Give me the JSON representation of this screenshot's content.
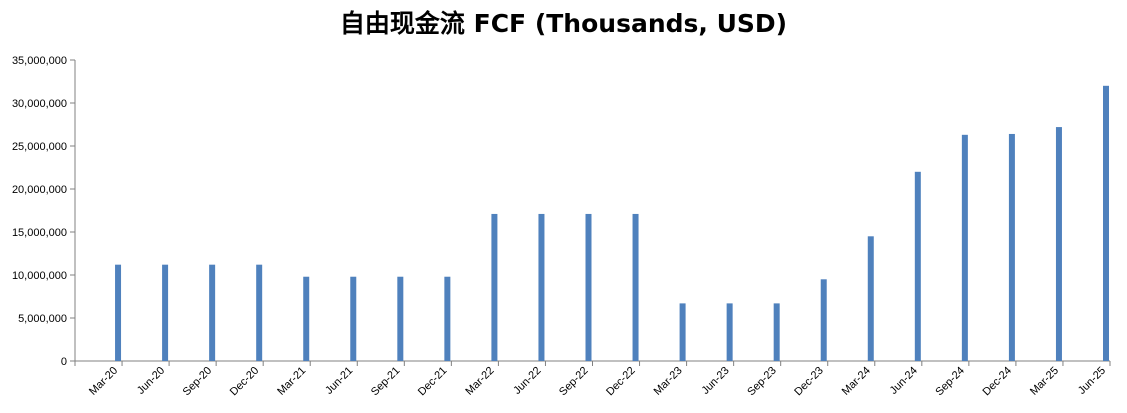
{
  "chart_data": {
    "type": "bar",
    "title": "自由现金流 FCF (Thousands, USD)",
    "xlabel": "",
    "ylabel": "",
    "ylim": [
      0,
      35000000
    ],
    "yticks": [
      0,
      5000000,
      10000000,
      15000000,
      20000000,
      25000000,
      30000000,
      35000000
    ],
    "ytick_labels": [
      "0",
      "5,000,000",
      "10,000,000",
      "15,000,000",
      "20,000,000",
      "25,000,000",
      "30,000,000",
      "35,000,000"
    ],
    "grid": false,
    "legend": "none",
    "bar_color": "#4F81BD",
    "categories": [
      "Mar-20",
      "Jun-20",
      "Sep-20",
      "Dec-20",
      "Mar-21",
      "Jun-21",
      "Sep-21",
      "Dec-21",
      "Mar-22",
      "Jun-22",
      "Sep-22",
      "Dec-22",
      "Mar-23",
      "Jun-23",
      "Sep-23",
      "Dec-23",
      "Mar-24",
      "Jun-24",
      "Sep-24",
      "Dec-24",
      "Mar-25",
      "Jun-25"
    ],
    "series": [
      {
        "values": [
          11200000,
          11200000,
          11200000,
          11200000,
          9800000,
          9800000,
          9800000,
          9800000,
          17100000,
          17100000,
          17100000,
          17100000,
          6700000,
          6700000,
          6700000,
          9500000,
          14500000,
          22000000,
          26300000,
          26400000,
          27200000,
          32000000
        ]
      }
    ]
  }
}
